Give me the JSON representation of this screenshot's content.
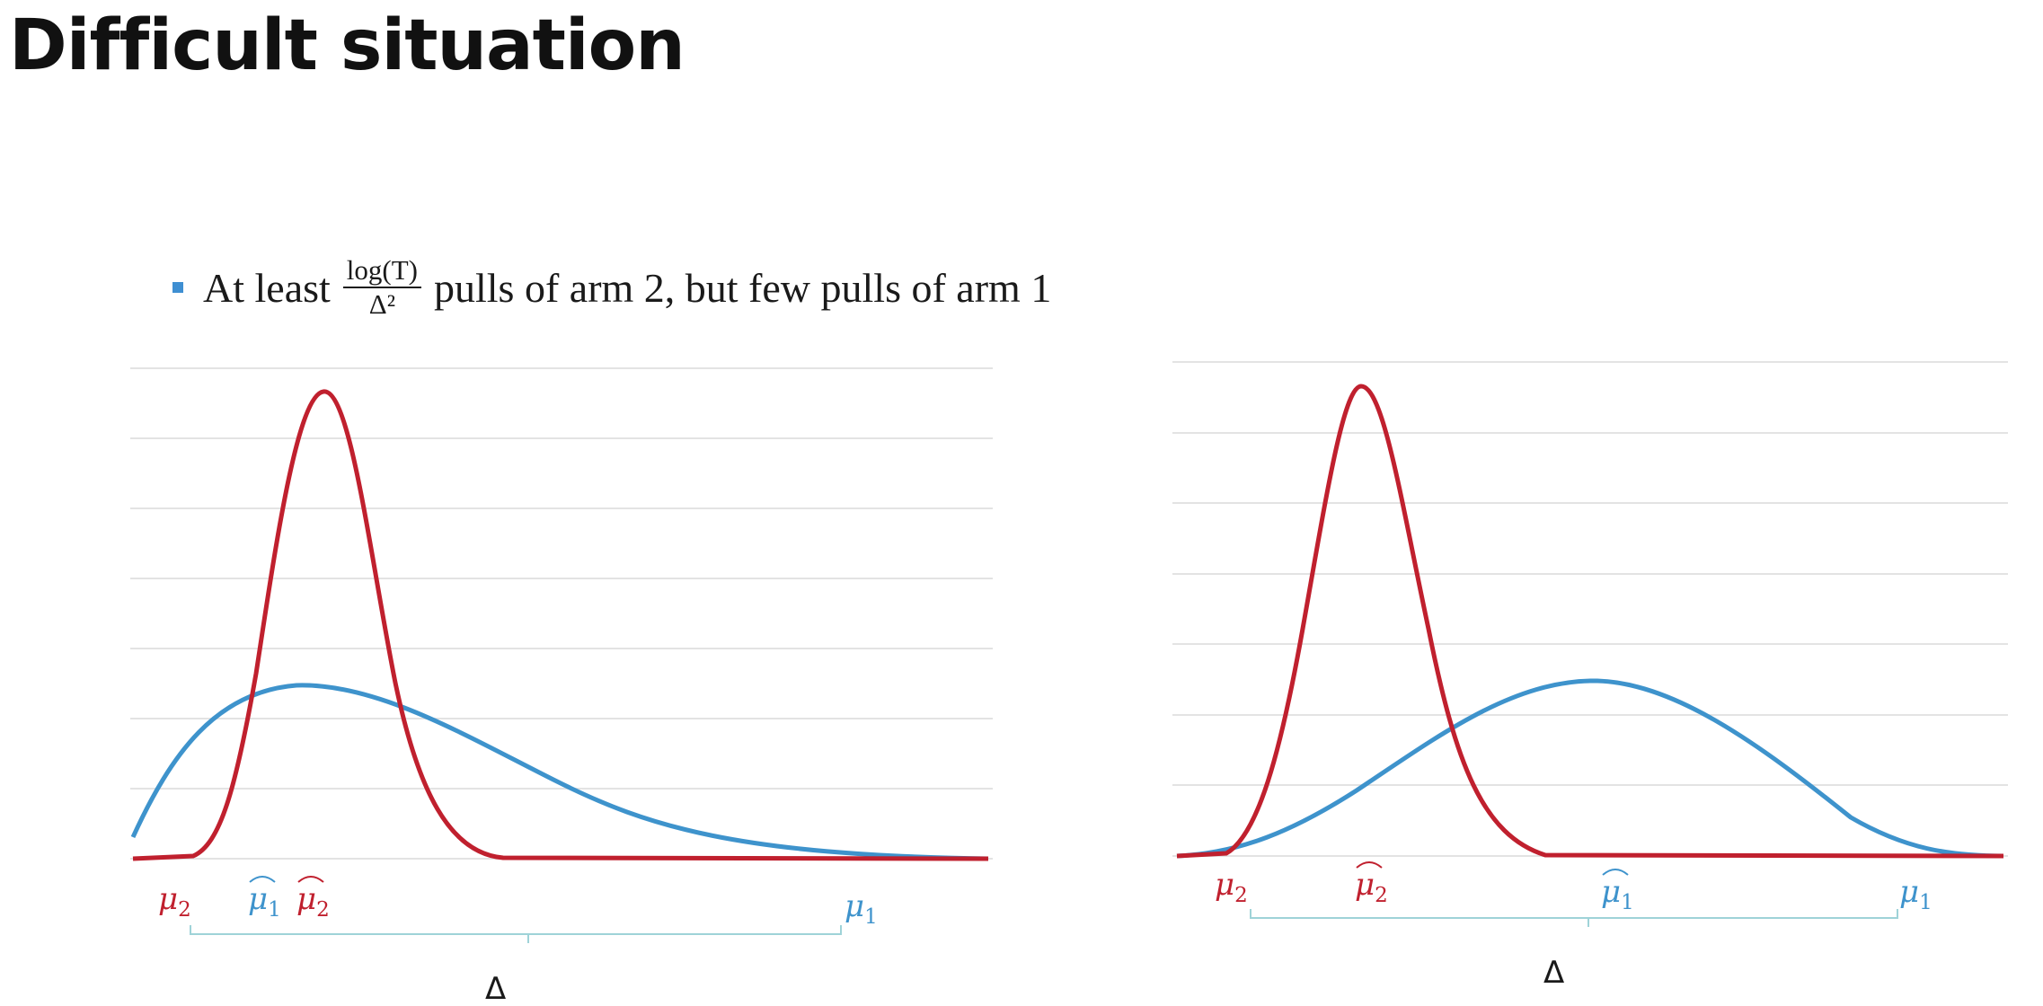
{
  "title": "Difficult situation",
  "bullet": {
    "prefix": "At least",
    "numerator": "log(T)",
    "denominator": "Δ²",
    "suffix": "pulls of arm 2, but few pulls of arm 1"
  },
  "colors": {
    "arm2": "#c0202e",
    "arm1": "#3e93cc",
    "grid": "#e3e3e3",
    "brace": "#9fd3d8"
  },
  "labels": {
    "mu_symbol": "μ",
    "sub_2": "2",
    "sub_1": "1",
    "delta": "Δ"
  }
}
